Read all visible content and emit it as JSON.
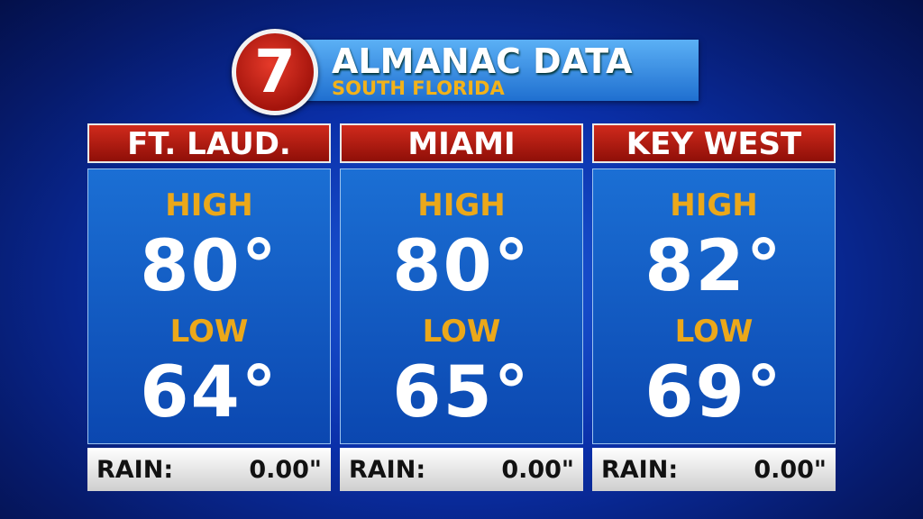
{
  "logo": "7",
  "header": {
    "title": "ALMANAC DATA",
    "subtitle": "SOUTH FLORIDA"
  },
  "columns": [
    {
      "name": "FT. LAUD.",
      "high_label": "HIGH",
      "high": "80°",
      "low_label": "LOW",
      "low": "64°",
      "rain_label": "RAIN:",
      "rain": "0.00\""
    },
    {
      "name": "MIAMI",
      "high_label": "HIGH",
      "high": "80°",
      "low_label": "LOW",
      "low": "65°",
      "rain_label": "RAIN:",
      "rain": "0.00\""
    },
    {
      "name": "KEY WEST",
      "high_label": "HIGH",
      "high": "82°",
      "low_label": "LOW",
      "low": "69°",
      "rain_label": "RAIN:",
      "rain": "0.00\""
    }
  ]
}
